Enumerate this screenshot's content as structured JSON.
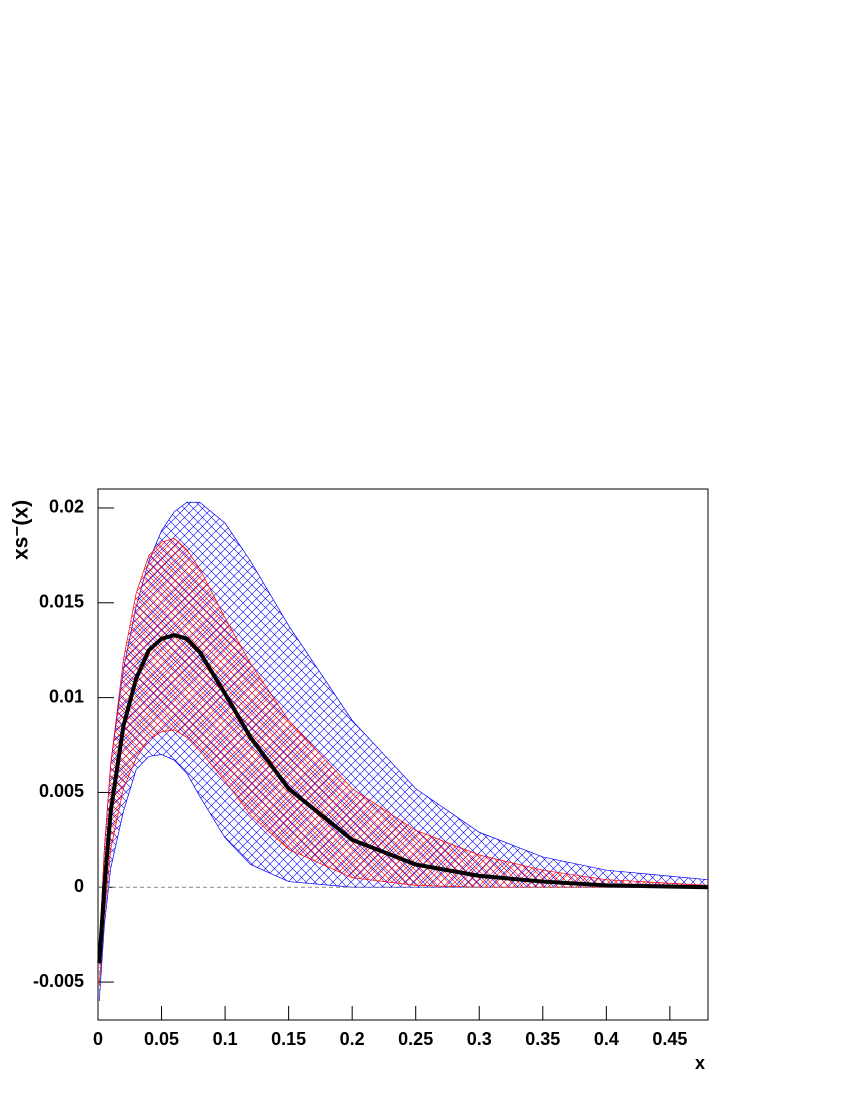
{
  "chart_data": {
    "type": "band-line",
    "x_label": "x",
    "y_label": "xs⁻(x)",
    "x": [
      0.001,
      0.005,
      0.01,
      0.02,
      0.03,
      0.04,
      0.05,
      0.06,
      0.07,
      0.08,
      0.1,
      0.12,
      0.15,
      0.2,
      0.25,
      0.3,
      0.35,
      0.4,
      0.48
    ],
    "bands": [
      {
        "color": "#0000ff",
        "upper": [
          -0.0035,
          0.002,
          0.0065,
          0.0115,
          0.0148,
          0.0172,
          0.0188,
          0.0198,
          0.0203,
          0.0203,
          0.0192,
          0.0172,
          0.0138,
          0.0088,
          0.0052,
          0.0029,
          0.0016,
          0.0009,
          0.0004
        ],
        "lower": [
          -0.006,
          -0.002,
          0.001,
          0.004,
          0.0062,
          0.0069,
          0.007,
          0.0067,
          0.006,
          0.0048,
          0.0026,
          0.0012,
          0.0003,
          0.0,
          0,
          0,
          0,
          0,
          0
        ]
      },
      {
        "color": "#ff0000",
        "upper": [
          -0.0035,
          0.002,
          0.0065,
          0.012,
          0.0155,
          0.0175,
          0.0182,
          0.0184,
          0.0178,
          0.0168,
          0.0142,
          0.0118,
          0.0088,
          0.0052,
          0.003,
          0.0017,
          0.0009,
          0.0004,
          0.0001
        ],
        "lower": [
          -0.0052,
          -0.0015,
          0.002,
          0.0052,
          0.0068,
          0.0078,
          0.0082,
          0.0083,
          0.0079,
          0.0072,
          0.0056,
          0.0038,
          0.002,
          0.0005,
          0.0001,
          0,
          0,
          0,
          0
        ]
      }
    ],
    "series": [
      {
        "color": "#000000",
        "values": [
          -0.004,
          0.0,
          0.004,
          0.0085,
          0.011,
          0.0125,
          0.0131,
          0.0133,
          0.0131,
          0.0124,
          0.0102,
          0.0079,
          0.0052,
          0.0025,
          0.0012,
          0.0006,
          0.0003,
          0.0001,
          0
        ]
      }
    ],
    "hline": 0,
    "xlim": [
      0,
      0.48
    ],
    "xticks": [
      0,
      0.05,
      0.1,
      0.15,
      0.2,
      0.25,
      0.3,
      0.35,
      0.4,
      0.45
    ],
    "ylim": [
      -0.007,
      0.021
    ],
    "yticks": [
      -0.005,
      0,
      0.005,
      0.01,
      0.015,
      0.02
    ]
  }
}
